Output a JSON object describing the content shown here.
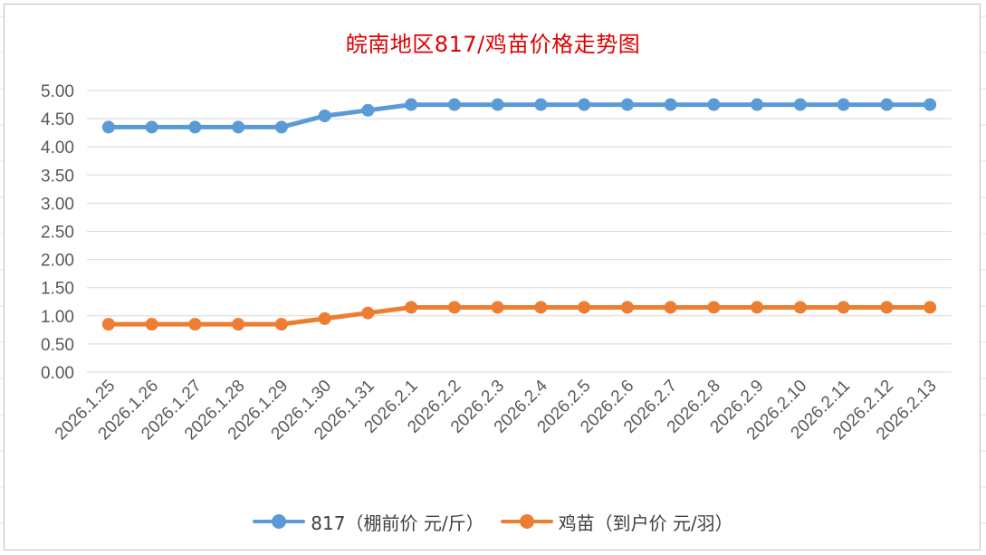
{
  "colors": {
    "series1": "#5b9bd5",
    "series2": "#ed7d31",
    "title": "#e00000",
    "grid": "#d9d9d9",
    "text": "#595959"
  },
  "chart_data": {
    "type": "line",
    "title": "皖南地区817/鸡苗价格走势图",
    "x": [
      "2026.1.25",
      "2026.1.26",
      "2026.1.27",
      "2026.1.28",
      "2026.1.29",
      "2026.1.30",
      "2026.1.31",
      "2026.2.1",
      "2026.2.2",
      "2026.2.3",
      "2026.2.4",
      "2026.2.5",
      "2026.2.6",
      "2026.2.7",
      "2026.2.8",
      "2026.2.9",
      "2026.2.10",
      "2026.2.11",
      "2026.2.12",
      "2026.2.13"
    ],
    "series": [
      {
        "name": "817（棚前价 元/斤）",
        "values": [
          4.35,
          4.35,
          4.35,
          4.35,
          4.35,
          4.55,
          4.65,
          4.75,
          4.75,
          4.75,
          4.75,
          4.75,
          4.75,
          4.75,
          4.75,
          4.75,
          4.75,
          4.75,
          4.75,
          4.75
        ]
      },
      {
        "name": "鸡苗（到户价 元/羽）",
        "values": [
          0.85,
          0.85,
          0.85,
          0.85,
          0.85,
          0.95,
          1.05,
          1.15,
          1.15,
          1.15,
          1.15,
          1.15,
          1.15,
          1.15,
          1.15,
          1.15,
          1.15,
          1.15,
          1.15,
          1.15
        ]
      }
    ],
    "ylim": [
      0,
      5
    ],
    "yticks": [
      "0.00",
      "0.50",
      "1.00",
      "1.50",
      "2.00",
      "2.50",
      "3.00",
      "3.50",
      "4.00",
      "4.50",
      "5.00"
    ],
    "grid": true,
    "legend": "bottom"
  }
}
